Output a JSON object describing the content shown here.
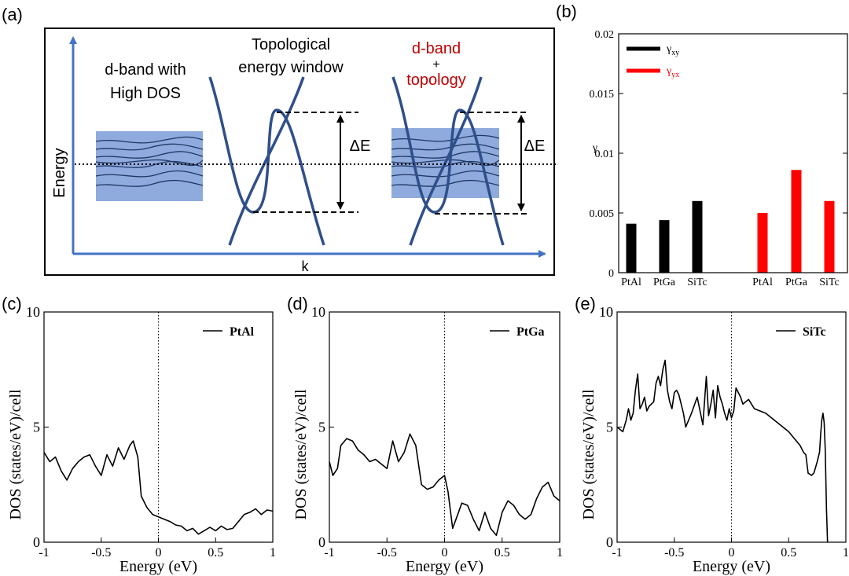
{
  "colors": {
    "axis_blue": "#4472c4",
    "band_blue": "#2f4f8a",
    "box_blue": "#8faadc",
    "red_text": "#c00000",
    "bar_black": "#000000",
    "bar_red": "#ff0000",
    "dos_line": "#000000"
  },
  "schematic": {
    "panel_label": "(a)",
    "y_axis_label": "Energy",
    "x_axis_label": "k",
    "dband_label_line1": "d-band with",
    "dband_label_line2": "High DOS",
    "window_label_line1": "Topological",
    "window_label_line2": "energy window",
    "combo_label_line1": "d-band",
    "combo_label_line2": "+",
    "combo_label_line3": "topology",
    "delta_e_label": "ΔE"
  },
  "chart_data": [
    {
      "id": "b",
      "panel_label": "(b)",
      "type": "bar",
      "ylabel": "γ",
      "ylim": [
        0,
        0.02
      ],
      "yticks": [
        "0",
        "0.005",
        "0.01",
        "0.015",
        "0.02"
      ],
      "legend": [
        {
          "label": "γ",
          "sub": "xy",
          "color": "#000000"
        },
        {
          "label": "γ",
          "sub": "yx",
          "color": "#ff0000"
        }
      ],
      "series": [
        {
          "name": "γxy",
          "categories": [
            "PtAl",
            "PtGa",
            "SiTc"
          ],
          "values": [
            0.0041,
            0.0044,
            0.006
          ]
        },
        {
          "name": "γyx",
          "categories": [
            "PtAl",
            "PtGa",
            "SiTc"
          ],
          "values": [
            0.005,
            0.0086,
            0.006
          ]
        }
      ]
    },
    {
      "id": "c",
      "panel_label": "(c)",
      "type": "line",
      "legend": "PtAl",
      "xlabel": "Energy (eV)",
      "ylabel": "DOS (states/eV)/cell",
      "xlim": [
        -1,
        1
      ],
      "ylim": [
        0,
        10
      ],
      "xticks": [
        "-1",
        "-0.5",
        "0",
        "0.5",
        "1"
      ],
      "yticks": [
        "0",
        "5",
        "10"
      ],
      "x": [
        -1.0,
        -0.95,
        -0.9,
        -0.85,
        -0.8,
        -0.75,
        -0.7,
        -0.65,
        -0.6,
        -0.55,
        -0.5,
        -0.45,
        -0.4,
        -0.35,
        -0.3,
        -0.25,
        -0.22,
        -0.18,
        -0.15,
        -0.1,
        -0.05,
        0.0,
        0.05,
        0.1,
        0.15,
        0.2,
        0.25,
        0.3,
        0.35,
        0.4,
        0.45,
        0.5,
        0.55,
        0.6,
        0.65,
        0.7,
        0.75,
        0.8,
        0.85,
        0.9,
        0.95,
        1.0
      ],
      "y": [
        3.9,
        3.5,
        3.7,
        3.1,
        2.7,
        3.2,
        3.5,
        3.7,
        3.8,
        3.3,
        2.9,
        3.8,
        3.3,
        4.1,
        3.6,
        4.2,
        4.4,
        3.7,
        2.0,
        1.5,
        1.2,
        1.1,
        1.0,
        0.9,
        0.75,
        0.7,
        0.5,
        0.6,
        0.35,
        0.5,
        0.65,
        0.5,
        0.7,
        0.55,
        0.6,
        0.9,
        1.2,
        1.3,
        1.45,
        1.2,
        1.4,
        1.35
      ]
    },
    {
      "id": "d",
      "panel_label": "(d)",
      "type": "line",
      "legend": "PtGa",
      "xlabel": "Energy (eV)",
      "ylabel": "DOS (states/eV)/cell",
      "xlim": [
        -1,
        1
      ],
      "ylim": [
        0,
        10
      ],
      "xticks": [
        "-1",
        "-0.5",
        "0",
        "0.5",
        "1"
      ],
      "yticks": [
        "0",
        "5",
        "10"
      ],
      "x": [
        -1.0,
        -0.97,
        -0.93,
        -0.9,
        -0.85,
        -0.8,
        -0.75,
        -0.7,
        -0.65,
        -0.6,
        -0.55,
        -0.5,
        -0.45,
        -0.4,
        -0.35,
        -0.3,
        -0.25,
        -0.2,
        -0.15,
        -0.1,
        -0.05,
        0.0,
        0.03,
        0.07,
        0.1,
        0.15,
        0.2,
        0.25,
        0.3,
        0.35,
        0.4,
        0.45,
        0.5,
        0.55,
        0.6,
        0.65,
        0.7,
        0.75,
        0.8,
        0.85,
        0.9,
        0.95,
        1.0
      ],
      "y": [
        3.5,
        2.9,
        3.2,
        4.2,
        4.5,
        4.4,
        4.0,
        3.8,
        3.5,
        3.6,
        3.4,
        3.2,
        4.4,
        3.5,
        3.9,
        4.7,
        4.2,
        2.5,
        2.3,
        2.4,
        2.7,
        2.9,
        2.2,
        0.6,
        1.0,
        1.7,
        1.6,
        1.0,
        0.5,
        1.3,
        0.6,
        0.3,
        1.3,
        1.8,
        1.6,
        1.2,
        1.0,
        1.2,
        1.9,
        2.4,
        2.6,
        2.0,
        1.8
      ]
    },
    {
      "id": "e",
      "panel_label": "(e)",
      "type": "line",
      "legend": "SiTc",
      "xlabel": "Energy (eV)",
      "ylabel": "DOS (states/eV)/cell",
      "xlim": [
        -1,
        1
      ],
      "ylim": [
        0,
        10
      ],
      "xticks": [
        "-1",
        "-0.5",
        "0",
        "0.5",
        "1"
      ],
      "yticks": [
        "0",
        "5",
        "10"
      ],
      "x": [
        -1.0,
        -0.95,
        -0.92,
        -0.9,
        -0.88,
        -0.86,
        -0.84,
        -0.82,
        -0.8,
        -0.78,
        -0.76,
        -0.74,
        -0.72,
        -0.7,
        -0.68,
        -0.66,
        -0.64,
        -0.62,
        -0.6,
        -0.58,
        -0.56,
        -0.54,
        -0.52,
        -0.5,
        -0.48,
        -0.46,
        -0.44,
        -0.42,
        -0.4,
        -0.35,
        -0.3,
        -0.25,
        -0.22,
        -0.2,
        -0.18,
        -0.16,
        -0.14,
        -0.12,
        -0.1,
        -0.08,
        -0.06,
        -0.04,
        -0.02,
        0.0,
        0.02,
        0.04,
        0.06,
        0.08,
        0.1,
        0.15,
        0.2,
        0.3,
        0.4,
        0.5,
        0.55,
        0.6,
        0.63,
        0.65,
        0.67,
        0.7,
        0.72,
        0.75,
        0.77,
        0.78,
        0.79,
        0.8,
        0.81,
        0.82,
        0.83,
        0.84
      ],
      "y": [
        5.0,
        4.8,
        5.3,
        5.8,
        5.3,
        5.6,
        6.6,
        7.3,
        5.8,
        6.0,
        6.3,
        5.7,
        5.9,
        6.0,
        6.1,
        6.9,
        7.2,
        6.8,
        7.5,
        7.9,
        6.6,
        6.1,
        5.8,
        6.5,
        6.6,
        6.4,
        6.0,
        5.6,
        5.0,
        5.6,
        6.3,
        5.1,
        7.2,
        5.5,
        6.0,
        6.6,
        5.4,
        6.8,
        6.3,
        6.0,
        5.6,
        5.3,
        5.8,
        5.4,
        5.7,
        6.7,
        6.5,
        6.3,
        6.0,
        6.2,
        5.8,
        5.6,
        5.2,
        4.8,
        4.5,
        4.2,
        3.9,
        3.8,
        3.0,
        2.9,
        3.0,
        3.5,
        3.9,
        4.7,
        5.3,
        5.6,
        5.2,
        4.0,
        1.5,
        0.0
      ]
    }
  ]
}
